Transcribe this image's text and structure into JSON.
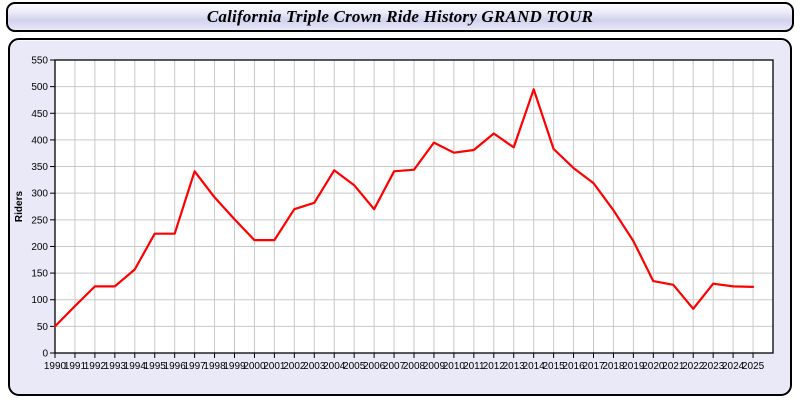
{
  "header": {
    "title": "California Triple Crown Ride History GRAND TOUR"
  },
  "colors": {
    "line": "#ff0000",
    "panel_background": "#e9e9f8",
    "plot_background": "#ffffff",
    "grid": "#c9c9c9",
    "axis": "#000000"
  },
  "chart_data": {
    "type": "line",
    "title": "California Triple Crown Ride History GRAND TOUR",
    "ylabel": "Riders",
    "xlabel": "",
    "ylim": [
      0,
      550
    ],
    "ytick_step": 50,
    "xlim": [
      1990,
      2026
    ],
    "grid": true,
    "legend_position": "none",
    "x": [
      1990,
      1991,
      1992,
      1993,
      1994,
      1995,
      1996,
      1997,
      1998,
      1999,
      2000,
      2001,
      2002,
      2003,
      2004,
      2005,
      2006,
      2007,
      2008,
      2009,
      2010,
      2011,
      2012,
      2013,
      2014,
      2015,
      2016,
      2017,
      2018,
      2019,
      2020,
      2021,
      2022,
      2023,
      2024,
      2025
    ],
    "series": [
      {
        "name": "Riders",
        "color": "#ff0000",
        "values": [
          50,
          88,
          125,
          125,
          157,
          224,
          224,
          341,
          292,
          251,
          212,
          212,
          270,
          282,
          343,
          315,
          270,
          341,
          344,
          395,
          376,
          381,
          412,
          386,
          495,
          383,
          347,
          319,
          268,
          210,
          135,
          128,
          83,
          130,
          125,
          124
        ]
      }
    ]
  }
}
